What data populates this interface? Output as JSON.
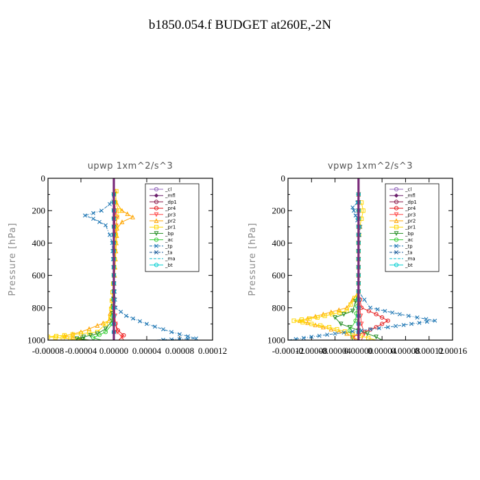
{
  "title": "b1850.054.f  BUDGET at260E,-2N",
  "chart_data": [
    {
      "type": "line",
      "title": "upwp   1xm^2/s^3",
      "xlabel": "",
      "ylabel": "Pressure [hPa]",
      "xlim": [
        -8e-05,
        0.00012
      ],
      "ylim": [
        1000,
        0
      ],
      "xticks": [
        "-0.00008",
        "-0.00004",
        "0.00000",
        "0.00004",
        "0.00008",
        "0.00012"
      ],
      "yticks": [
        "0",
        "200",
        "400",
        "600",
        "800",
        "1000"
      ],
      "legend_position": "top-right",
      "series": [
        {
          "name": "_cl",
          "color": "#9467bd",
          "marker": "circle",
          "y": [
            100,
            400,
            700,
            1000
          ],
          "x": [
            0,
            0,
            0,
            0
          ]
        },
        {
          "name": "_mfl",
          "color": "#6b1f6b",
          "marker": "diamond",
          "y": [
            100,
            400,
            700,
            1000
          ],
          "x": [
            0,
            0,
            0,
            0
          ]
        },
        {
          "name": "_dp1",
          "color": "#8b1a4a",
          "marker": "circle",
          "y": [
            100,
            400,
            700,
            1000
          ],
          "x": [
            0,
            0,
            0,
            0
          ]
        },
        {
          "name": "_pr4",
          "color": "#e41a1c",
          "marker": "circle",
          "y": [
            100,
            200,
            400,
            700,
            850,
            900,
            940,
            970,
            1000
          ],
          "x": [
            0,
            2e-06,
            0,
            0,
            0,
            2e-06,
            5e-06,
            1.2e-05,
            6e-06
          ]
        },
        {
          "name": "_pr3",
          "color": "#ff4444",
          "marker": "triangle-down",
          "y": [
            100,
            200,
            240,
            400,
            700,
            900,
            950,
            980,
            1000
          ],
          "x": [
            0,
            2e-06,
            4e-06,
            0,
            0,
            2e-06,
            4e-06,
            1e-05,
            1.2e-05
          ]
        },
        {
          "name": "_pr2",
          "color": "#ffa500",
          "marker": "triangle",
          "y": [
            80,
            150,
            200,
            240,
            270,
            310,
            400,
            700,
            880,
            910,
            950,
            975,
            1000
          ],
          "x": [
            2e-06,
            3e-06,
            1e-05,
            2.3e-05,
            1e-05,
            4e-06,
            3e-06,
            0,
            -6e-06,
            -2e-05,
            -4e-05,
            -6e-05,
            -3e-05
          ]
        },
        {
          "name": "_pr1",
          "color": "#ffd700",
          "marker": "square",
          "y": [
            80,
            150,
            200,
            240,
            300,
            400,
            600,
            860,
            900,
            950,
            980,
            1000
          ],
          "x": [
            3e-06,
            2e-06,
            6e-06,
            4e-06,
            3e-06,
            2e-06,
            0,
            -4e-06,
            -1e-05,
            -2e-05,
            -8e-05,
            -3.5e-05
          ]
        },
        {
          "name": "_bp",
          "color": "#228b22",
          "marker": "triangle-down",
          "y": [
            100,
            400,
            700,
            880,
            930,
            960,
            990,
            1000
          ],
          "x": [
            0,
            0,
            0,
            -2e-06,
            -1e-05,
            -2e-05,
            -4.5e-05,
            -3e-05
          ]
        },
        {
          "name": "_ac",
          "color": "#32cd32",
          "marker": "circle",
          "y": [
            100,
            400,
            700,
            900,
            950,
            985,
            1000
          ],
          "x": [
            0,
            0,
            0,
            -2e-06,
            -1e-05,
            -2.5e-05,
            -1.5e-05
          ]
        },
        {
          "name": "_tp",
          "color": "#1f77b4",
          "marker": "x",
          "y": [
            100,
            160,
            200,
            230,
            250,
            290,
            350,
            400,
            600,
            800,
            850,
            900,
            950,
            990,
            1000
          ],
          "x": [
            0,
            -5e-06,
            -1.5e-05,
            -3.5e-05,
            -2.5e-05,
            -1e-05,
            -5e-06,
            -2e-06,
            0,
            2e-06,
            1.5e-05,
            4e-05,
            7e-05,
            0.0001,
            5e-05
          ]
        },
        {
          "name": "_ta",
          "color": "#1a5a9a",
          "marker": "x",
          "y": [
            100,
            400,
            700,
            1000
          ],
          "x": [
            0,
            0,
            0,
            0
          ]
        },
        {
          "name": "_ma",
          "color": "#17becf",
          "marker": "none",
          "y": [
            100,
            400,
            700,
            1000
          ],
          "x": [
            0,
            0,
            0,
            0
          ]
        },
        {
          "name": "_bt",
          "color": "#00ced1",
          "marker": "circle",
          "y": [
            100,
            400,
            700,
            1000
          ],
          "x": [
            0,
            0,
            0,
            0
          ]
        }
      ]
    },
    {
      "type": "line",
      "title": "vpwp   1xm^2/s^3",
      "xlabel": "",
      "ylabel": "Pressure [hPa]",
      "xlim": [
        -0.00012,
        0.00016
      ],
      "ylim": [
        1000,
        0
      ],
      "xticks": [
        "-0.00012",
        "-0.00008",
        "-0.00004",
        "0.00000",
        "0.00004",
        "0.00008",
        "0.00012",
        "0.00016"
      ],
      "yticks": [
        "0",
        "200",
        "400",
        "600",
        "800",
        "1000"
      ],
      "legend_position": "top-right",
      "series": [
        {
          "name": "_cl",
          "color": "#9467bd",
          "marker": "circle",
          "y": [
            100,
            400,
            700,
            1000
          ],
          "x": [
            0,
            0,
            0,
            0
          ]
        },
        {
          "name": "_mfl",
          "color": "#6b1f6b",
          "marker": "diamond",
          "y": [
            100,
            400,
            700,
            1000
          ],
          "x": [
            0,
            0,
            0,
            0
          ]
        },
        {
          "name": "_dp1",
          "color": "#8b1a4a",
          "marker": "circle",
          "y": [
            100,
            400,
            700,
            1000
          ],
          "x": [
            0,
            0,
            0,
            0
          ]
        },
        {
          "name": "_pr4",
          "color": "#e41a1c",
          "marker": "circle",
          "y": [
            100,
            400,
            700,
            800,
            840,
            880,
            920,
            950,
            980,
            1000
          ],
          "x": [
            0,
            0,
            0,
            5e-06,
            3e-05,
            5e-05,
            3e-05,
            1e-05,
            -1e-05,
            -5e-06
          ]
        },
        {
          "name": "_pr3",
          "color": "#ff4444",
          "marker": "triangle-down",
          "y": [
            100,
            400,
            700,
            900,
            960,
            1000
          ],
          "x": [
            0,
            0,
            0,
            5e-06,
            1e-05,
            5e-06
          ]
        },
        {
          "name": "_pr2",
          "color": "#ffa500",
          "marker": "triangle",
          "y": [
            100,
            400,
            700,
            800,
            840,
            880,
            920,
            960,
            1000
          ],
          "x": [
            0,
            0,
            0,
            -2e-05,
            -6e-05,
            -0.0001,
            -6e-05,
            -2e-05,
            0
          ]
        },
        {
          "name": "_pr1",
          "color": "#ffd700",
          "marker": "square",
          "y": [
            150,
            200,
            250,
            300,
            400,
            700,
            820,
            860,
            880,
            920,
            960,
            1000
          ],
          "x": [
            5e-06,
            8e-06,
            5e-06,
            2e-06,
            0,
            0,
            -2e-05,
            -7e-05,
            -0.00011,
            -5e-05,
            -1e-05,
            3e-05
          ]
        },
        {
          "name": "_bp",
          "color": "#228b22",
          "marker": "triangle-down",
          "y": [
            100,
            400,
            700,
            820,
            860,
            900,
            940,
            980,
            1000
          ],
          "x": [
            0,
            0,
            0,
            -1e-05,
            -4e-05,
            -3e-05,
            0,
            3e-05,
            4e-05
          ]
        },
        {
          "name": "_ac",
          "color": "#32cd32",
          "marker": "circle",
          "y": [
            100,
            400,
            700,
            880,
            940,
            1000
          ],
          "x": [
            0,
            0,
            0,
            -5e-06,
            -1.5e-05,
            -1e-05
          ]
        },
        {
          "name": "_tp",
          "color": "#1f77b4",
          "marker": "x",
          "y": [
            150,
            180,
            200,
            230,
            260,
            300,
            400,
            700,
            800,
            840,
            880,
            920,
            960,
            1000
          ],
          "x": [
            -2e-06,
            -1e-05,
            -8e-06,
            -5e-06,
            -2e-06,
            3e-06,
            0,
            0,
            2e-05,
            7e-05,
            0.00013,
            5e-05,
            -4e-05,
            -0.00012
          ]
        },
        {
          "name": "_ta",
          "color": "#1a5a9a",
          "marker": "x",
          "y": [
            100,
            400,
            700,
            1000
          ],
          "x": [
            0,
            0,
            0,
            0
          ]
        },
        {
          "name": "_ma",
          "color": "#17becf",
          "marker": "none",
          "y": [
            100,
            400,
            700,
            1000
          ],
          "x": [
            0,
            0,
            0,
            0
          ]
        },
        {
          "name": "_bt",
          "color": "#00ced1",
          "marker": "circle",
          "y": [
            100,
            400,
            700,
            1000
          ],
          "x": [
            0,
            0,
            0,
            0
          ]
        }
      ]
    }
  ]
}
